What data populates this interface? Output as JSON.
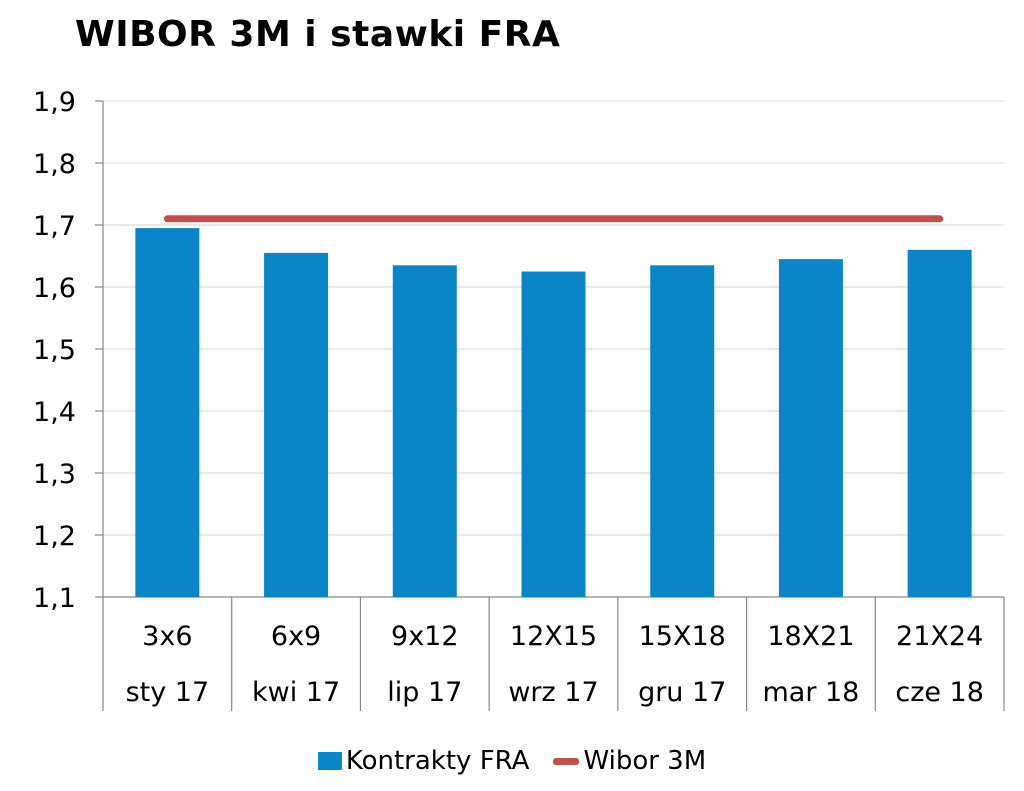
{
  "chart_data": {
    "type": "bar",
    "title": "WIBOR 3M i stawki FRA",
    "categories": [
      [
        "3x6",
        "sty 17"
      ],
      [
        "6x9",
        "kwi 17"
      ],
      [
        "9x12",
        "lip 17"
      ],
      [
        "12X15",
        "wrz 17"
      ],
      [
        "15X18",
        "gru 17"
      ],
      [
        "18X21",
        "mar 18"
      ],
      [
        "21X24",
        "cze 18"
      ]
    ],
    "series": [
      {
        "name": "Kontrakty FRA",
        "type": "bar",
        "color": "#0a85c7",
        "values": [
          1.695,
          1.655,
          1.635,
          1.625,
          1.635,
          1.645,
          1.66
        ]
      },
      {
        "name": "Wibor 3M",
        "type": "line",
        "color": "#c0504d",
        "values": [
          1.71,
          1.71,
          1.71,
          1.71,
          1.71,
          1.71,
          1.71
        ]
      }
    ],
    "ylim": [
      1.1,
      1.9
    ],
    "yticks": [
      "1,1",
      "1,2",
      "1,3",
      "1,4",
      "1,5",
      "1,6",
      "1,7",
      "1,8",
      "1,9"
    ],
    "xlabel": "",
    "ylabel": "",
    "grid": true,
    "legend_position": "bottom"
  }
}
